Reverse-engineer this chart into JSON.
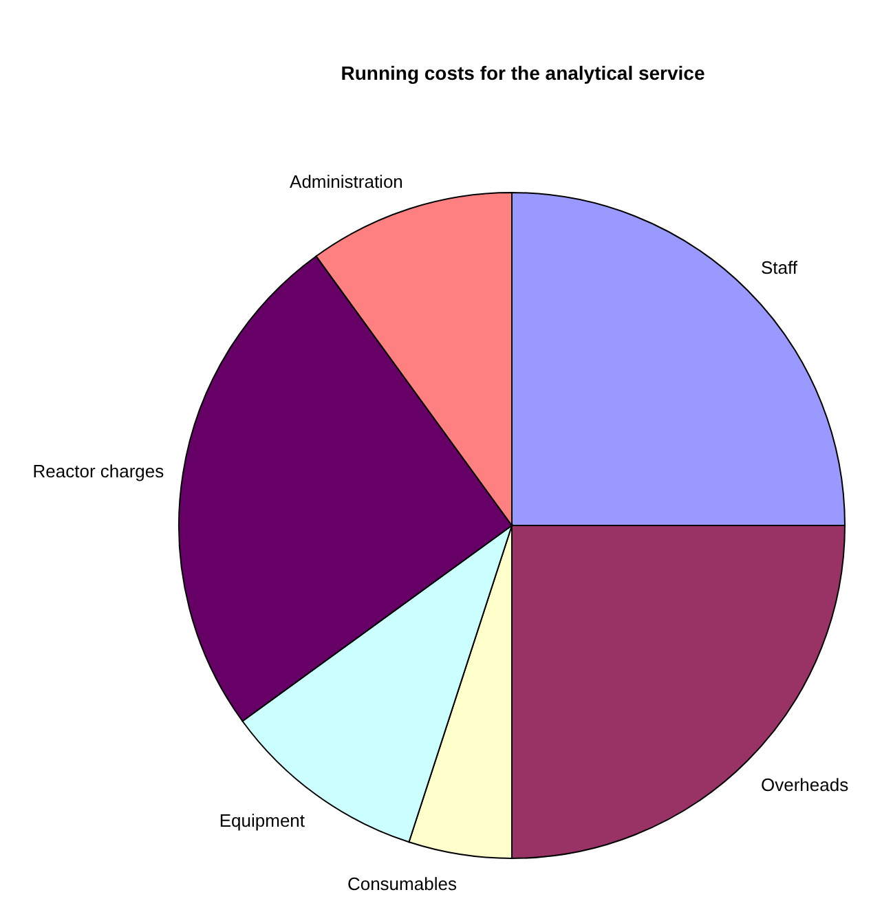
{
  "chart_data": {
    "type": "pie",
    "title": "Running costs for the analytical service",
    "categories": [
      "Staff",
      "Overheads",
      "Consumables",
      "Equipment",
      "Reactor charges",
      "Administration"
    ],
    "values": [
      25,
      25,
      5,
      10,
      25,
      10
    ],
    "colors": [
      "#9999ff",
      "#993366",
      "#ffffcc",
      "#ccffff",
      "#660066",
      "#ff8080"
    ]
  }
}
